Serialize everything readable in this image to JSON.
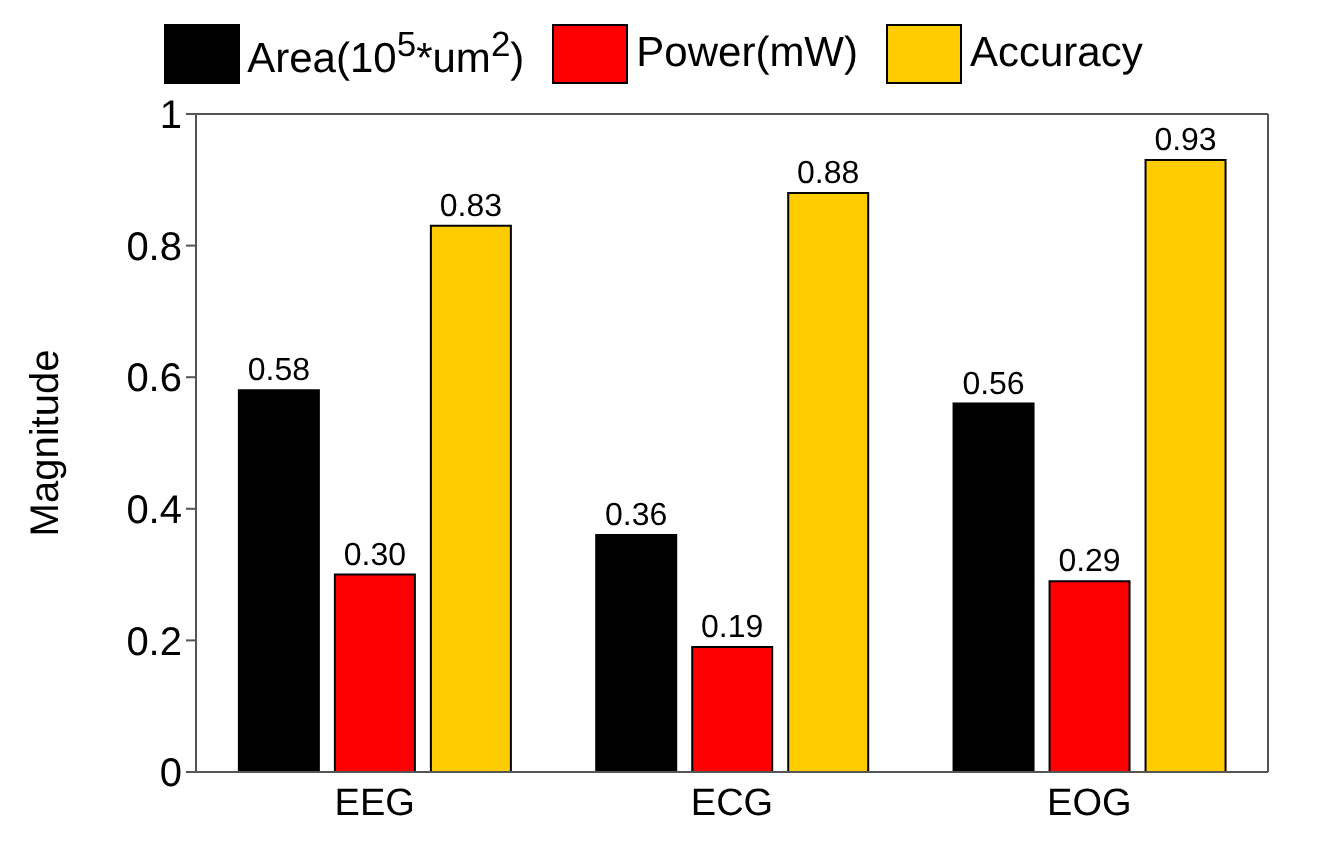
{
  "chart_data": {
    "type": "bar",
    "ylabel": "Magnitude",
    "categories": [
      "EEG",
      "ECG",
      "EOG"
    ],
    "series": [
      {
        "name": "Area(10$^{5}$*um$^{2}$)",
        "color": "#000000",
        "values": [
          0.58,
          0.36,
          0.56
        ],
        "value_labels": [
          "0.58",
          "0.36",
          "0.56"
        ]
      },
      {
        "name": "Power(mW)",
        "color": "#ff0000",
        "values": [
          0.3,
          0.19,
          0.29
        ],
        "value_labels": [
          "0.30",
          "0.19",
          "0.29"
        ]
      },
      {
        "name": "Accuracy",
        "color": "#ffcc00",
        "values": [
          0.83,
          0.88,
          0.93
        ],
        "value_labels": [
          "0.83",
          "0.88",
          "0.93"
        ]
      }
    ],
    "ylim": [
      0,
      1
    ],
    "yticks": [
      0,
      0.2,
      0.4,
      0.6,
      0.8,
      1
    ],
    "grid": false,
    "legend": "top"
  }
}
